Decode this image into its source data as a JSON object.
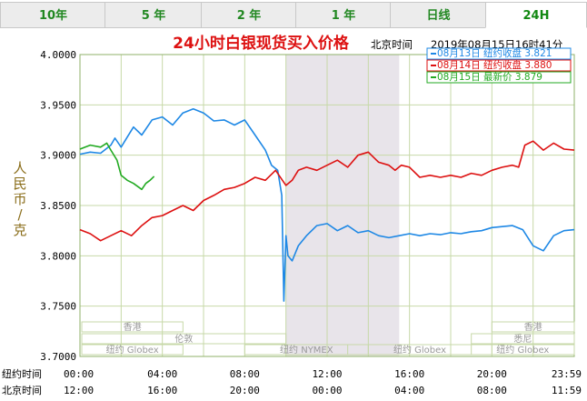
{
  "tabs": [
    {
      "label": "10年",
      "active": false
    },
    {
      "label": "5 年",
      "active": false
    },
    {
      "label": "2 年",
      "active": false
    },
    {
      "label": "1 年",
      "active": false
    },
    {
      "label": "日线",
      "active": false
    },
    {
      "label": "24H",
      "active": true
    }
  ],
  "chart_data": {
    "type": "line",
    "title": "24小时白银现货买入价格",
    "timestamp_label": "北京时间",
    "timestamp": "2019年08月15日16时41分",
    "ylabel": "人民币/克",
    "ylim": [
      3.7,
      4.0
    ],
    "yticks": [
      "4.0000",
      "3.9500",
      "3.9000",
      "3.8500",
      "3.8000",
      "3.7500",
      "3.7000"
    ],
    "x_row_labels": [
      "纽约时间",
      "北京时间"
    ],
    "x_ticks_ny": [
      "00:00",
      "04:00",
      "08:00",
      "12:00",
      "16:00",
      "20:00",
      "23:59"
    ],
    "x_ticks_bj": [
      "12:00",
      "16:00",
      "20:00",
      "00:00",
      "04:00",
      "08:00",
      "11:59"
    ],
    "grid": true,
    "shaded_band": {
      "from_hour": 10.0,
      "to_hour": 15.5
    },
    "legend_position": "top-right",
    "legend": [
      {
        "label": "08月13日  纽约收盘 3.821",
        "color": "#1e88e5"
      },
      {
        "label": "08月14日  纽约收盘 3.880",
        "color": "#dd1111"
      },
      {
        "label": "08月15日    最新价 3.879",
        "color": "#22aa22"
      }
    ],
    "markets": [
      "香港",
      "伦敦",
      "纽约 Globex",
      "纽约 NYMEX",
      "纽约 Globex",
      "悉尼",
      "香港",
      "纽约 Globex"
    ],
    "series": [
      {
        "color": "#1e88e5",
        "x": [
          0,
          0.5,
          1.0,
          1.5,
          1.7,
          2.0,
          2.3,
          2.6,
          3.0,
          3.5,
          4.0,
          4.5,
          5.0,
          5.5,
          6.0,
          6.5,
          7.0,
          7.5,
          8.0,
          8.5,
          9.0,
          9.3,
          9.6,
          9.8,
          9.9,
          10.0,
          10.1,
          10.3,
          10.6,
          11.0,
          11.5,
          12.0,
          12.5,
          13.0,
          13.5,
          14.0,
          14.5,
          15.0,
          15.5,
          16.0,
          16.5,
          17.0,
          17.5,
          18.0,
          18.5,
          19.0,
          19.5,
          20.0,
          20.5,
          21.0,
          21.5,
          22.0,
          22.5,
          23.0,
          23.5,
          24.0
        ],
        "y": [
          3.901,
          3.903,
          3.902,
          3.91,
          3.917,
          3.908,
          3.918,
          3.928,
          3.92,
          3.935,
          3.938,
          3.93,
          3.942,
          3.946,
          3.942,
          3.934,
          3.935,
          3.93,
          3.935,
          3.92,
          3.905,
          3.89,
          3.885,
          3.86,
          3.755,
          3.82,
          3.8,
          3.795,
          3.81,
          3.82,
          3.83,
          3.832,
          3.825,
          3.83,
          3.823,
          3.825,
          3.82,
          3.818,
          3.82,
          3.822,
          3.82,
          3.822,
          3.821,
          3.823,
          3.822,
          3.824,
          3.825,
          3.828,
          3.829,
          3.83,
          3.826,
          3.81,
          3.805,
          3.82,
          3.825,
          3.826
        ]
      },
      {
        "color": "#dd1111",
        "x": [
          0,
          0.5,
          1.0,
          1.5,
          2.0,
          2.5,
          3.0,
          3.5,
          4.0,
          4.5,
          5.0,
          5.5,
          6.0,
          6.5,
          7.0,
          7.5,
          8.0,
          8.5,
          9.0,
          9.5,
          10.0,
          10.3,
          10.6,
          11.0,
          11.5,
          12.0,
          12.5,
          13.0,
          13.5,
          14.0,
          14.5,
          15.0,
          15.3,
          15.6,
          16.0,
          16.5,
          17.0,
          17.5,
          18.0,
          18.5,
          19.0,
          19.5,
          20.0,
          20.5,
          21.0,
          21.3,
          21.6,
          22.0,
          22.5,
          23.0,
          23.5,
          24.0
        ],
        "y": [
          3.826,
          3.822,
          3.815,
          3.82,
          3.825,
          3.82,
          3.83,
          3.838,
          3.84,
          3.845,
          3.85,
          3.845,
          3.855,
          3.86,
          3.866,
          3.868,
          3.872,
          3.878,
          3.875,
          3.885,
          3.87,
          3.875,
          3.885,
          3.888,
          3.885,
          3.89,
          3.895,
          3.888,
          3.9,
          3.903,
          3.893,
          3.89,
          3.885,
          3.89,
          3.888,
          3.878,
          3.88,
          3.878,
          3.88,
          3.878,
          3.882,
          3.88,
          3.885,
          3.888,
          3.89,
          3.888,
          3.91,
          3.914,
          3.905,
          3.912,
          3.906,
          3.905
        ]
      },
      {
        "color": "#22aa22",
        "x": [
          0,
          0.5,
          1.0,
          1.3,
          1.5,
          1.8,
          2.0,
          2.3,
          2.6,
          3.0,
          3.2,
          3.4,
          3.6
        ],
        "y": [
          3.906,
          3.91,
          3.908,
          3.912,
          3.905,
          3.895,
          3.88,
          3.875,
          3.872,
          3.866,
          3.872,
          3.875,
          3.879
        ]
      }
    ]
  }
}
